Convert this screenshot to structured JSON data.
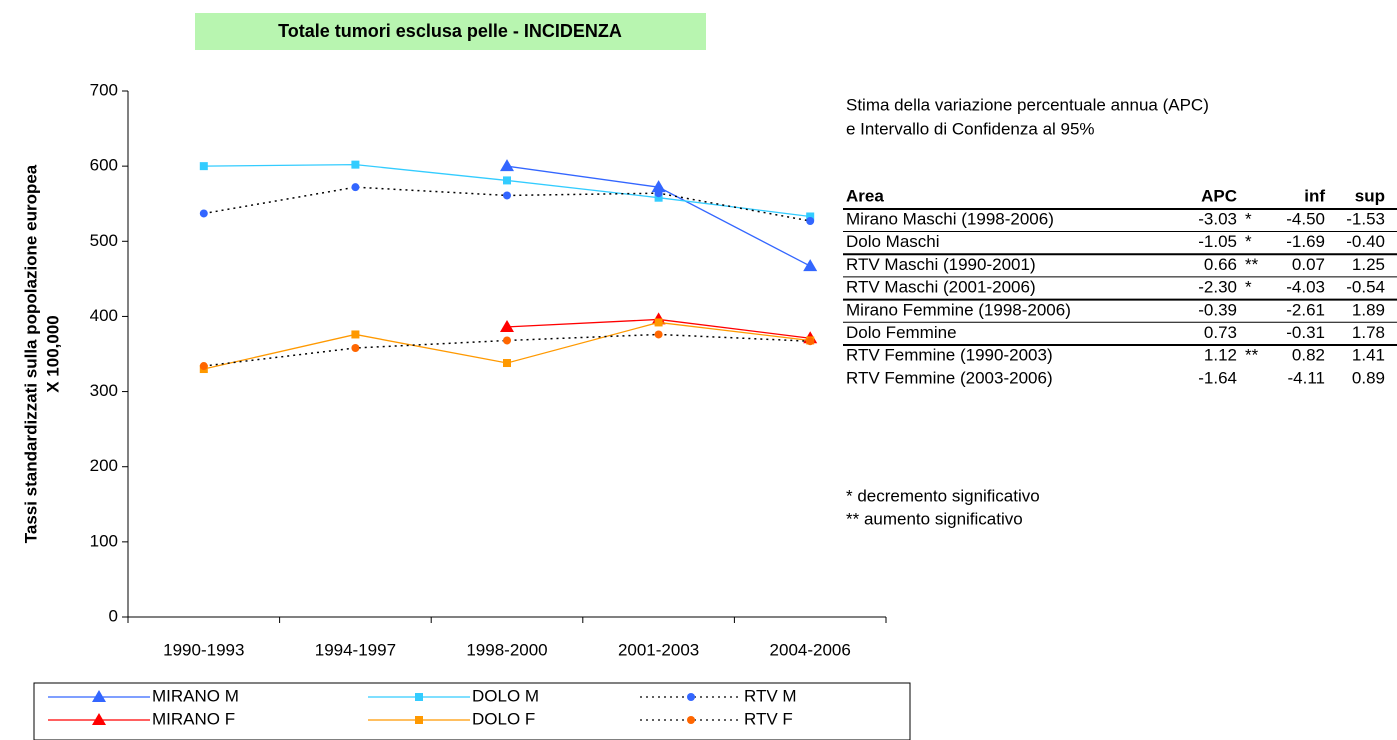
{
  "chart_data": {
    "type": "line",
    "title": "Totale tumori esclusa pelle - INCIDENZA",
    "ylabel": [
      "Tassi standardizzati sulla popolazione europea",
      "X 100,000"
    ],
    "categories": [
      "1990-1993",
      "1994-1997",
      "1998-2000",
      "2001-2003",
      "2004-2006"
    ],
    "ylim": [
      0,
      700
    ],
    "yticks": [
      0,
      100,
      200,
      300,
      400,
      500,
      600,
      700
    ],
    "series": [
      {
        "name": "MIRANO M",
        "color": "#3366ff",
        "marker": "triangle",
        "marker_color": "#3366ff",
        "dashed": false,
        "values": [
          null,
          null,
          600,
          572,
          467
        ]
      },
      {
        "name": "DOLO M",
        "color": "#33ccff",
        "marker": "square",
        "marker_color": "#33ccff",
        "dashed": false,
        "values": [
          600,
          602,
          581,
          558,
          533
        ]
      },
      {
        "name": "RTV M",
        "color": "#000000",
        "marker": "circle",
        "marker_color": "#3366ff",
        "dashed": true,
        "values": [
          537,
          572,
          561,
          564,
          527
        ]
      },
      {
        "name": "MIRANO F",
        "color": "#ff0000",
        "marker": "triangle",
        "marker_color": "#ff0000",
        "dashed": false,
        "values": [
          null,
          null,
          386,
          396,
          371
        ]
      },
      {
        "name": "DOLO F",
        "color": "#ff9900",
        "marker": "square",
        "marker_color": "#ff9900",
        "dashed": false,
        "values": [
          330,
          376,
          338,
          392,
          368
        ]
      },
      {
        "name": "RTV F",
        "color": "#000000",
        "marker": "circle",
        "marker_color": "#ff6600",
        "dashed": true,
        "values": [
          334,
          358,
          368,
          376,
          367
        ]
      }
    ]
  },
  "side": {
    "intro": [
      "Stima della variazione percentuale annua (APC)",
      "e Intervallo di Confidenza al 95%"
    ],
    "table": {
      "header": [
        "Area",
        "APC",
        "inf",
        "sup"
      ],
      "rows": [
        [
          "Mirano Maschi (1998-2006)",
          "-3.03",
          "*",
          "-4.50",
          "-1.53"
        ],
        [
          "Dolo Maschi",
          "-1.05",
          "*",
          "-1.69",
          "-0.40"
        ],
        [
          "RTV Maschi (1990-2001)",
          "0.66",
          "**",
          "0.07",
          "1.25"
        ],
        [
          "RTV Maschi (2001-2006)",
          "-2.30",
          "*",
          "-4.03",
          "-0.54"
        ],
        [
          "Mirano Femmine (1998-2006)",
          "-0.39",
          "",
          "-2.61",
          "1.89"
        ],
        [
          "Dolo Femmine",
          "0.73",
          "",
          "-0.31",
          "1.78"
        ],
        [
          "RTV Femmine (1990-2003)",
          "1.12",
          "**",
          "0.82",
          "1.41"
        ],
        [
          "RTV Femmine (2003-2006)",
          "-1.64",
          "",
          "-4.11",
          "0.89"
        ]
      ]
    },
    "notes": [
      "* decremento significativo",
      "** aumento significativo"
    ]
  }
}
